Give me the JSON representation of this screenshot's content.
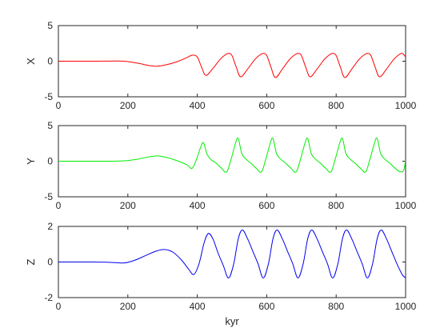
{
  "chart_data": [
    {
      "type": "line",
      "ylabel": "X",
      "xlabel": "",
      "xlim": [
        0,
        1000
      ],
      "ylim": [
        -5,
        5
      ],
      "xticks": [
        0,
        200,
        400,
        600,
        800,
        1000
      ],
      "yticks": [
        -5,
        0,
        5
      ],
      "series": [
        {
          "color": "#ff0000",
          "x": [
            0,
            50,
            100,
            150,
            190,
            230,
            260,
            285,
            310,
            340,
            370,
            385,
            400,
            412,
            425,
            445,
            465,
            478,
            490,
            500,
            512,
            525,
            545,
            565,
            578,
            590,
            600,
            612,
            625,
            645,
            665,
            678,
            690,
            700,
            712,
            725,
            745,
            765,
            778,
            790,
            800,
            812,
            825,
            845,
            865,
            878,
            890,
            900,
            912,
            925,
            945,
            965,
            978,
            990,
            1000
          ],
          "y": [
            0,
            0,
            0,
            0.02,
            0,
            -0.3,
            -0.6,
            -0.7,
            -0.5,
            -0.1,
            0.5,
            0.85,
            0.6,
            -0.8,
            -2.0,
            -1.0,
            0.2,
            0.8,
            1.1,
            0.8,
            -0.8,
            -2.2,
            -1.1,
            0.2,
            0.8,
            1.1,
            0.8,
            -0.8,
            -2.3,
            -1.1,
            0.2,
            0.8,
            1.1,
            0.8,
            -0.8,
            -2.2,
            -1.1,
            0.2,
            0.8,
            1.1,
            0.8,
            -0.8,
            -2.3,
            -1.1,
            0.2,
            0.8,
            1.1,
            0.8,
            -0.8,
            -2.2,
            -1.1,
            0.2,
            0.8,
            1.1,
            0.6
          ]
        }
      ]
    },
    {
      "type": "line",
      "ylabel": "Y",
      "xlabel": "",
      "xlim": [
        0,
        1000
      ],
      "ylim": [
        -5,
        5
      ],
      "xticks": [
        0,
        200,
        400,
        600,
        800,
        1000
      ],
      "yticks": [
        -5,
        0,
        5
      ],
      "series": [
        {
          "color": "#00ee00",
          "x": [
            0,
            50,
            100,
            150,
            190,
            230,
            260,
            285,
            310,
            340,
            370,
            385,
            398,
            410,
            418,
            428,
            440,
            455,
            470,
            485,
            498,
            510,
            518,
            528,
            540,
            555,
            570,
            585,
            598,
            610,
            618,
            628,
            640,
            655,
            670,
            685,
            698,
            710,
            718,
            728,
            740,
            755,
            770,
            785,
            798,
            810,
            818,
            828,
            840,
            855,
            870,
            885,
            898,
            910,
            918,
            928,
            940,
            955,
            970,
            985,
            995,
            1000
          ],
          "y": [
            0,
            0,
            0,
            0,
            0.05,
            0.3,
            0.6,
            0.75,
            0.55,
            0.1,
            -0.5,
            -1.0,
            0.3,
            2.0,
            2.6,
            1.0,
            0.2,
            -0.3,
            -1.0,
            -1.5,
            0.4,
            2.5,
            3.2,
            1.1,
            0.3,
            -0.3,
            -1.0,
            -1.5,
            0.4,
            2.5,
            3.2,
            1.1,
            0.3,
            -0.3,
            -1.0,
            -1.5,
            0.4,
            2.5,
            3.2,
            1.1,
            0.3,
            -0.3,
            -1.0,
            -1.5,
            0.4,
            2.5,
            3.2,
            1.1,
            0.3,
            -0.3,
            -1.0,
            -1.5,
            0.4,
            2.5,
            3.2,
            1.1,
            0.3,
            -0.3,
            -1.0,
            -1.5,
            -1.2,
            0.2
          ]
        }
      ]
    },
    {
      "type": "line",
      "ylabel": "Z",
      "xlabel": "kyr",
      "xlim": [
        0,
        1000
      ],
      "ylim": [
        -2,
        2
      ],
      "xticks": [
        0,
        200,
        400,
        600,
        800,
        1000
      ],
      "yticks": [
        -2,
        0,
        2
      ],
      "series": [
        {
          "color": "#0000ee",
          "x": [
            0,
            50,
            100,
            150,
            190,
            220,
            250,
            280,
            305,
            330,
            355,
            375,
            390,
            405,
            420,
            432,
            445,
            460,
            475,
            490,
            505,
            518,
            530,
            545,
            560,
            575,
            590,
            605,
            618,
            630,
            645,
            660,
            675,
            690,
            705,
            718,
            730,
            745,
            760,
            775,
            790,
            805,
            818,
            830,
            845,
            860,
            875,
            890,
            905,
            918,
            930,
            945,
            960,
            975,
            990,
            1000
          ],
          "y": [
            0,
            0,
            0,
            -0.02,
            -0.05,
            0.1,
            0.35,
            0.6,
            0.7,
            0.55,
            0.1,
            -0.4,
            -0.7,
            -0.1,
            1.1,
            1.6,
            1.3,
            0.5,
            -0.2,
            -0.9,
            -0.1,
            1.3,
            1.8,
            1.3,
            0.6,
            -0.1,
            -0.9,
            -0.1,
            1.3,
            1.8,
            1.3,
            0.6,
            -0.1,
            -0.9,
            -0.1,
            1.3,
            1.8,
            1.3,
            0.6,
            -0.1,
            -0.9,
            -0.1,
            1.3,
            1.8,
            1.3,
            0.6,
            -0.1,
            -0.9,
            -0.1,
            1.3,
            1.8,
            1.3,
            0.6,
            -0.1,
            -0.7,
            -0.9
          ]
        }
      ]
    }
  ]
}
